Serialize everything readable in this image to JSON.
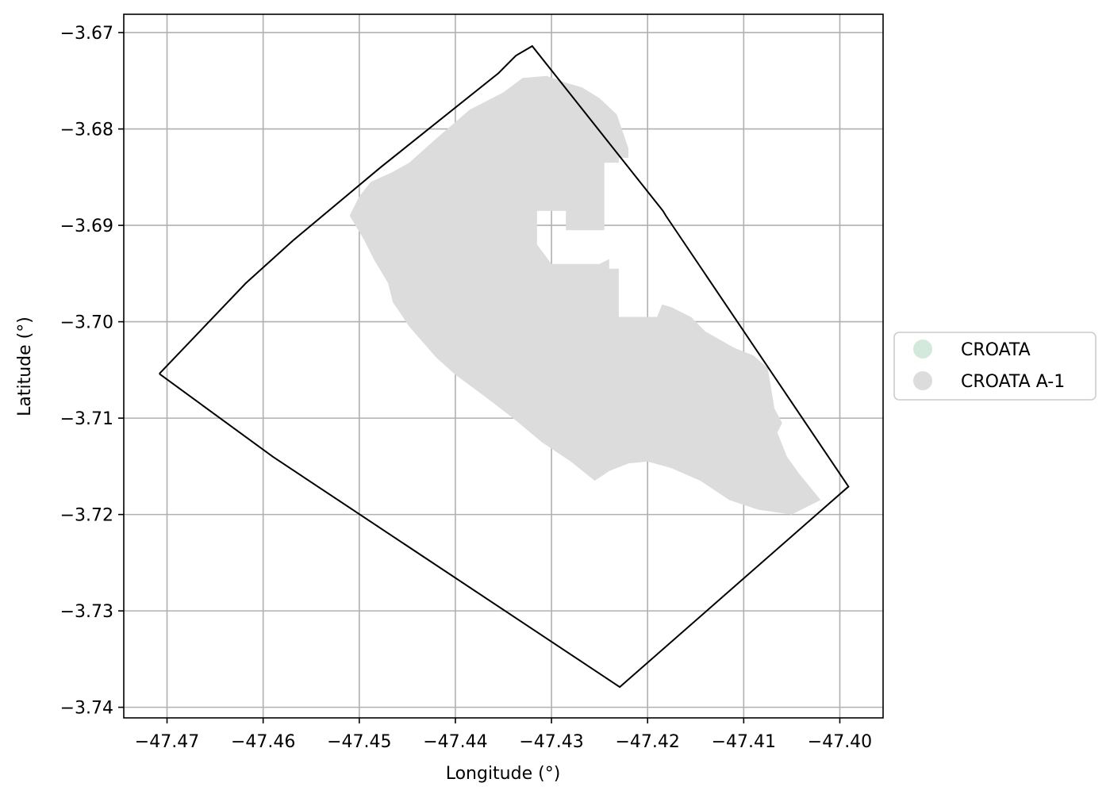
{
  "chart_data": {
    "type": "map",
    "xlabel": "Longitude (°)",
    "ylabel": "Latitude (°)",
    "xlim": [
      -47.4745,
      -47.3955
    ],
    "ylim": [
      -3.7411,
      -3.6681
    ],
    "x_ticks": [
      {
        "value": -47.47,
        "label": "−47.47"
      },
      {
        "value": -47.46,
        "label": "−47.46"
      },
      {
        "value": -47.45,
        "label": "−47.45"
      },
      {
        "value": -47.44,
        "label": "−47.44"
      },
      {
        "value": -47.43,
        "label": "−47.43"
      },
      {
        "value": -47.42,
        "label": "−47.42"
      },
      {
        "value": -47.41,
        "label": "−47.41"
      },
      {
        "value": -47.4,
        "label": "−47.40"
      }
    ],
    "y_ticks": [
      {
        "value": -3.67,
        "label": "−3.67"
      },
      {
        "value": -3.68,
        "label": "−3.68"
      },
      {
        "value": -3.69,
        "label": "−3.69"
      },
      {
        "value": -3.7,
        "label": "−3.70"
      },
      {
        "value": -3.71,
        "label": "−3.71"
      },
      {
        "value": -3.72,
        "label": "−3.72"
      },
      {
        "value": -3.73,
        "label": "−3.73"
      },
      {
        "value": -3.74,
        "label": "−3.74"
      }
    ],
    "grid": true,
    "legend": {
      "placement": "center-right-outside",
      "entries": [
        {
          "label": "CROATA",
          "color": "#d1eadc"
        },
        {
          "label": "CROATA A-1",
          "color": "#dcdcdc"
        }
      ]
    },
    "outline": {
      "color": "#000000",
      "points": [
        [
          -47.4708,
          -3.7054
        ],
        [
          -47.4618,
          -3.696
        ],
        [
          -47.4568,
          -3.6915
        ],
        [
          -47.4478,
          -3.684
        ],
        [
          -47.4355,
          -3.6742
        ],
        [
          -47.4337,
          -3.6724
        ],
        [
          -47.432,
          -3.6714
        ],
        [
          -47.4184,
          -3.6885
        ],
        [
          -47.4181,
          -3.689
        ],
        [
          -47.3991,
          -3.7171
        ],
        [
          -47.4229,
          -3.7379
        ],
        [
          -47.459,
          -3.714
        ],
        [
          -47.4708,
          -3.7054
        ]
      ]
    },
    "region": {
      "name": "CROATA A-1",
      "color": "#dcdcdc",
      "points": [
        [
          -47.4466,
          -3.6845
        ],
        [
          -47.4448,
          -3.6835
        ],
        [
          -47.442,
          -3.681
        ],
        [
          -47.4385,
          -3.678
        ],
        [
          -47.435,
          -3.6762
        ],
        [
          -47.433,
          -3.6747
        ],
        [
          -47.4305,
          -3.6745
        ],
        [
          -47.4285,
          -3.6752
        ],
        [
          -47.4268,
          -3.6757
        ],
        [
          -47.425,
          -3.6768
        ],
        [
          -47.4232,
          -3.6785
        ],
        [
          -47.422,
          -3.682
        ],
        [
          -47.422,
          -3.683
        ],
        [
          -47.423,
          -3.683
        ],
        [
          -47.423,
          -3.6835
        ],
        [
          -47.4245,
          -3.6835
        ],
        [
          -47.4245,
          -3.6905
        ],
        [
          -47.4285,
          -3.6905
        ],
        [
          -47.4285,
          -3.6885
        ],
        [
          -47.4315,
          -3.6885
        ],
        [
          -47.4315,
          -3.692
        ],
        [
          -47.43,
          -3.694
        ],
        [
          -47.425,
          -3.694
        ],
        [
          -47.424,
          -3.6935
        ],
        [
          -47.424,
          -3.6945
        ],
        [
          -47.423,
          -3.6945
        ],
        [
          -47.423,
          -3.6995
        ],
        [
          -47.419,
          -3.6995
        ],
        [
          -47.4185,
          -3.6982
        ],
        [
          -47.4175,
          -3.6985
        ],
        [
          -47.4155,
          -3.6995
        ],
        [
          -47.414,
          -3.701
        ],
        [
          -47.411,
          -3.7027
        ],
        [
          -47.409,
          -3.7035
        ],
        [
          -47.4075,
          -3.7048
        ],
        [
          -47.4068,
          -3.709
        ],
        [
          -47.406,
          -3.7105
        ],
        [
          -47.4065,
          -3.7115
        ],
        [
          -47.4055,
          -3.714
        ],
        [
          -47.4042,
          -3.7158
        ],
        [
          -47.402,
          -3.7185
        ],
        [
          -47.403,
          -3.719
        ],
        [
          -47.405,
          -3.72
        ],
        [
          -47.4085,
          -3.7195
        ],
        [
          -47.4115,
          -3.7185
        ],
        [
          -47.4145,
          -3.7165
        ],
        [
          -47.4175,
          -3.7152
        ],
        [
          -47.42,
          -3.7145
        ],
        [
          -47.422,
          -3.7147
        ],
        [
          -47.424,
          -3.7155
        ],
        [
          -47.4255,
          -3.7165
        ],
        [
          -47.428,
          -3.7145
        ],
        [
          -47.431,
          -3.7125
        ],
        [
          -47.434,
          -3.71
        ],
        [
          -47.437,
          -3.7077
        ],
        [
          -47.44,
          -3.7055
        ],
        [
          -47.442,
          -3.7037
        ],
        [
          -47.4448,
          -3.7005
        ],
        [
          -47.4458,
          -3.699
        ],
        [
          -47.4465,
          -3.698
        ],
        [
          -47.447,
          -3.696
        ],
        [
          -47.4485,
          -3.6935
        ],
        [
          -47.4495,
          -3.6915
        ],
        [
          -47.451,
          -3.689
        ],
        [
          -47.45,
          -3.687
        ],
        [
          -47.4488,
          -3.6855
        ],
        [
          -47.4466,
          -3.6845
        ]
      ]
    }
  }
}
